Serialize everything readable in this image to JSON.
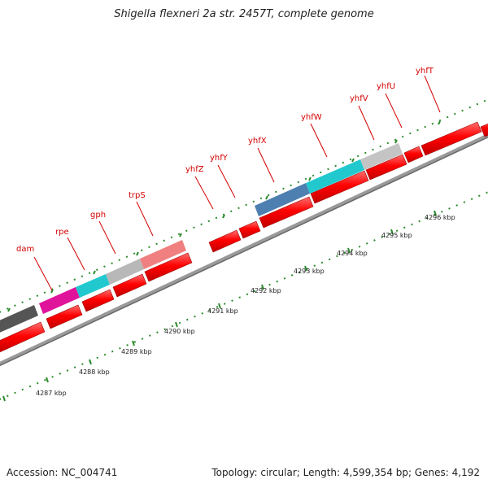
{
  "title": "Shigella flexneri 2a str. 2457T, complete genome",
  "footer": {
    "accession": "Accession: NC_004741",
    "summary": "Topology: circular; Length: 4,599,354 bp; Genes: 4,192"
  },
  "colors": {
    "cds": "#ff0000",
    "gene_label": "#d40000",
    "backbone": "#8a8a8a",
    "tick": "#2e8b2e"
  },
  "kbp_labels": [
    "4287 kbp",
    "4288 kbp",
    "4289 kbp",
    "4290 kbp",
    "4291 kbp",
    "4292 kbp",
    "4293 kbp",
    "4294 kbp",
    "4295 kbp",
    "4296 kbp"
  ],
  "gene_labels": [
    "dam",
    "rpe",
    "gph",
    "trpS",
    "yhfZ",
    "yhfY",
    "yhfX",
    "yhfW",
    "yhfV",
    "yhfU",
    "yhfT"
  ]
}
